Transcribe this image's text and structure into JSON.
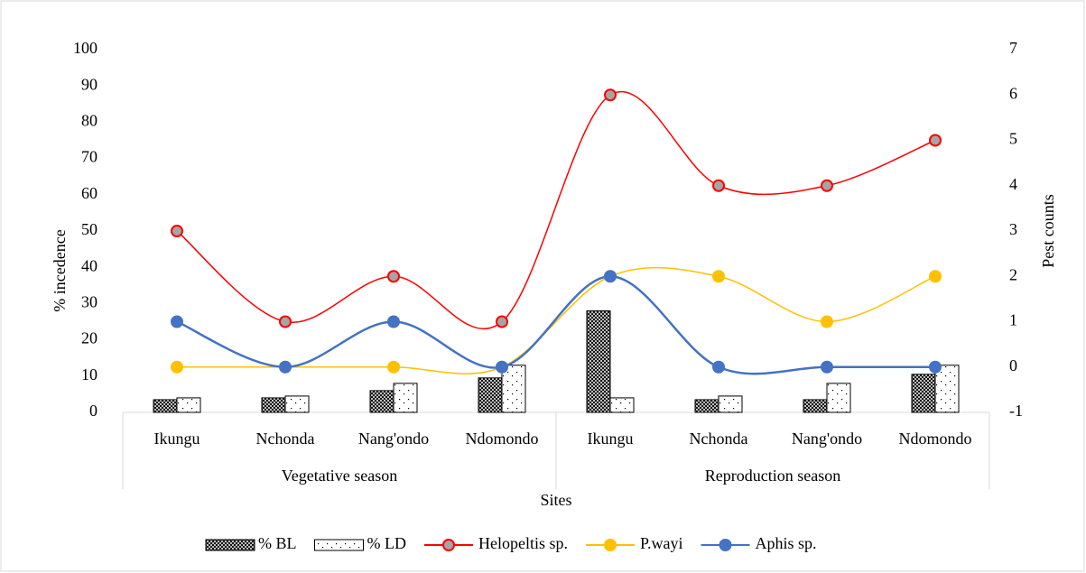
{
  "chart_data": {
    "type": "bar-line",
    "categories": [
      "Ikungu",
      "Nchonda",
      "Nang'ondo",
      "Ndomondo",
      "Ikungu",
      "Nchonda",
      "Nang'ondo",
      "Ndomondo"
    ],
    "groups": [
      "Vegetative season",
      "Reproduction season"
    ],
    "xlabel": "Sites",
    "ylabel": "% incedence",
    "y2label": "Pest counts",
    "ylim": [
      0,
      100
    ],
    "yticks": [
      0,
      10,
      20,
      30,
      40,
      50,
      60,
      70,
      80,
      90,
      100
    ],
    "y2lim": [
      -1,
      7
    ],
    "y2ticks": [
      -1,
      0,
      1,
      2,
      3,
      4,
      5,
      6,
      7
    ],
    "series": [
      {
        "name": "% BL",
        "type": "bar",
        "pattern": "crosshatch",
        "color": "#000000",
        "values": [
          3.5,
          4,
          6,
          9.5,
          28,
          3.5,
          3.5,
          10.5
        ]
      },
      {
        "name": "% LD",
        "type": "bar",
        "pattern": "dots",
        "color": "#000000",
        "values": [
          4,
          4.5,
          8,
          13,
          4,
          4.5,
          8,
          13
        ]
      },
      {
        "name": "Helopeltis sp.",
        "type": "line",
        "axis": "y2",
        "color": "#ff0000",
        "marker_fill": "#a5a5a5",
        "values": [
          3,
          1,
          2,
          1,
          6,
          4,
          4,
          5
        ]
      },
      {
        "name": "P.wayi",
        "type": "line",
        "axis": "y2",
        "color": "#ffc000",
        "marker_fill": "#ffc000",
        "values": [
          0,
          0,
          0,
          0,
          2,
          2,
          1,
          2
        ]
      },
      {
        "name": "Aphis sp.",
        "type": "line",
        "axis": "y2",
        "color": "#4472c4",
        "marker_fill": "#4472c4",
        "values": [
          1,
          0,
          1,
          0,
          2,
          0,
          0,
          0
        ]
      }
    ],
    "legend": "bottom"
  }
}
